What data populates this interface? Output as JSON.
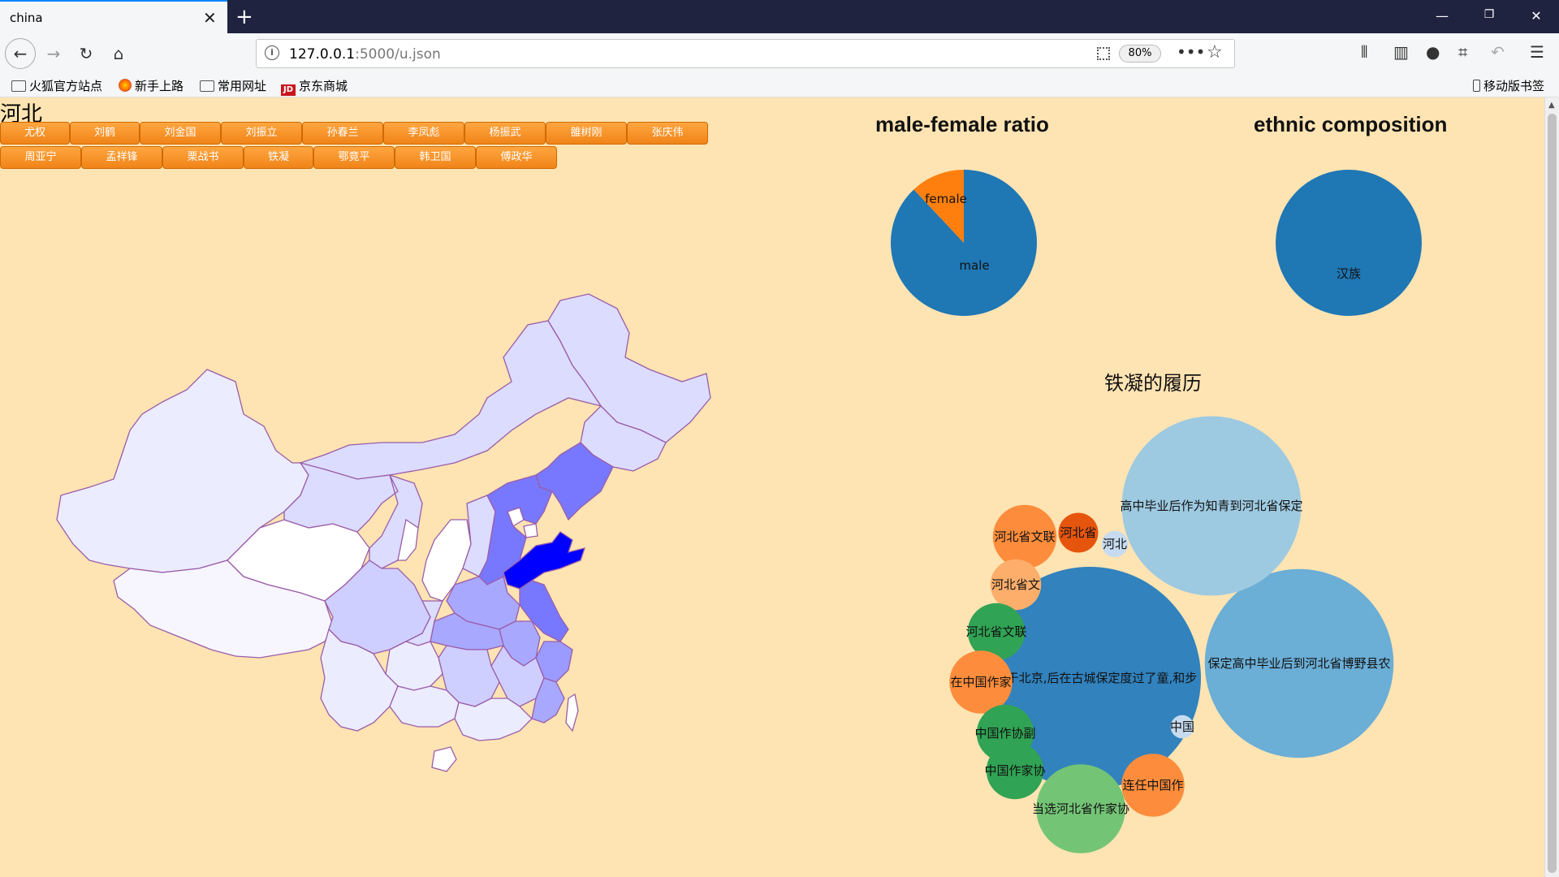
{
  "browser": {
    "tab_title": "china",
    "url_host": "127.0.0.1",
    "url_rest": ":5000/u.json",
    "zoom": "80%",
    "bookmarks": [
      "火狐官方站点",
      "新手上路",
      "常用网址",
      "京东商城"
    ],
    "mobile_bookmarks": "移动版书签",
    "colors": {
      "tabbar": "#202340",
      "toolbar": "#f5f6f7",
      "accent": "#0a84ff"
    }
  },
  "page": {
    "province": "河北",
    "people_row1": [
      "尤权",
      "刘鹤",
      "刘金国",
      "刘振立",
      "孙春兰",
      "李凤彪",
      "杨振武",
      "雒树刚",
      "张庆伟"
    ],
    "people_row2": [
      "周亚宁",
      "孟祥锋",
      "栗战书",
      "铁凝",
      "鄂竟平",
      "韩卫国",
      "傅政华"
    ],
    "button_color": "#f5901f",
    "background": "#ffe4b3"
  },
  "map": {
    "highlight_color": "#0000ff",
    "mid_color": "#7878ff",
    "light_color": "#dcdcff"
  },
  "chart_data": [
    {
      "type": "pie",
      "title": "male-female ratio",
      "labels": [
        "male",
        "female"
      ],
      "values": [
        88,
        12
      ],
      "colors": [
        "#1f77b4",
        "#ff7f0e"
      ]
    },
    {
      "type": "pie",
      "title": "ethnic composition",
      "labels": [
        "汉族"
      ],
      "values": [
        100
      ],
      "colors": [
        "#1f77b4"
      ]
    },
    {
      "type": "bubble",
      "title": "铁凝的履历",
      "bubbles": [
        {
          "label": "出生于北京,后在古城保定度过了童,和步",
          "value": 100,
          "color": "#3182bd"
        },
        {
          "label": "保定高中毕业后到河北省博野县农",
          "value": 72,
          "color": "#6baed6"
        },
        {
          "label": "高中毕业后作为知青到河北省保定",
          "value": 65,
          "color": "#9ecae1"
        },
        {
          "label": "河北省文联",
          "value": 8.2,
          "color": "#fd8d3c"
        },
        {
          "label": "河北省",
          "value": 3.2,
          "color": "#e6550d"
        },
        {
          "label": "河北",
          "value": 1.4,
          "color": "#c6dbef"
        },
        {
          "label": "河北省文",
          "value": 5.2,
          "color": "#fdae6b"
        },
        {
          "label": "河北省文联",
          "value": 6.6,
          "color": "#31a354"
        },
        {
          "label": "在中国作家",
          "value": 8,
          "color": "#fd8d3c"
        },
        {
          "label": "中国作协副",
          "value": 6.6,
          "color": "#31a354"
        },
        {
          "label": "中国作家协",
          "value": 6.6,
          "color": "#31a354"
        },
        {
          "label": "当选河北省作家协",
          "value": 16,
          "color": "#74c476"
        },
        {
          "label": "连任中国作",
          "value": 8,
          "color": "#fd8d3c"
        },
        {
          "label": "中国",
          "value": 1.1,
          "color": "#c6dbef"
        }
      ]
    }
  ]
}
